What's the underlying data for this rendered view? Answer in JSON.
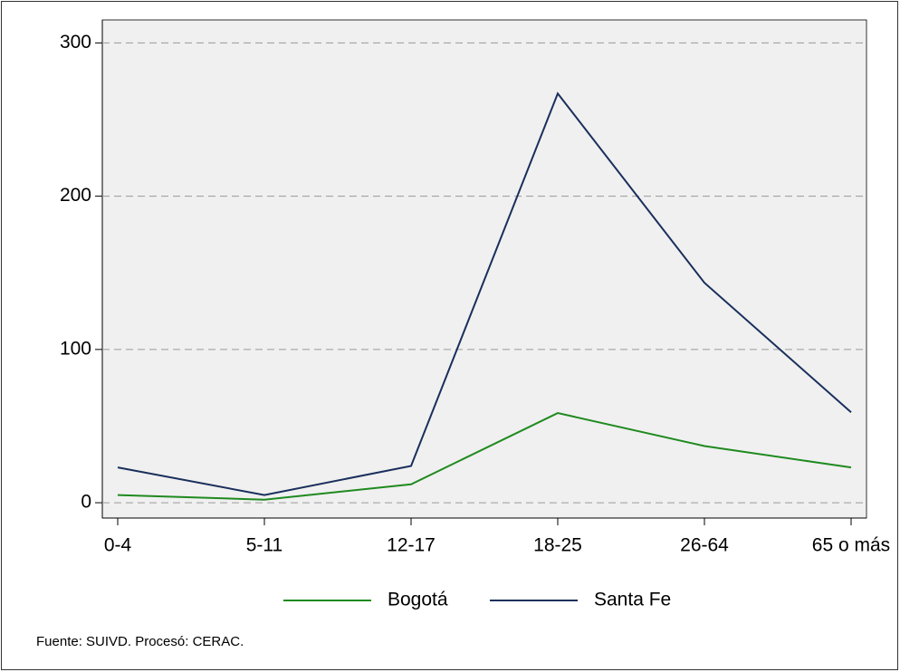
{
  "chart_data": {
    "type": "line",
    "categories": [
      "0-4",
      "5-11",
      "12-17",
      "18-25",
      "26-64",
      "65 o más"
    ],
    "series": [
      {
        "name": "Bogotá",
        "color": "#1f8a1f",
        "values": [
          5,
          2,
          12,
          58.5,
          37,
          23
        ]
      },
      {
        "name": "Santa Fe",
        "color": "#1a2f5c",
        "values": [
          23,
          5,
          24,
          267,
          143.5,
          59
        ]
      }
    ],
    "ylim": [
      -10,
      315
    ],
    "yticks": [
      0,
      100,
      200,
      300
    ],
    "grid": true,
    "legend": "bottom",
    "note": "Fuente: SUIVD. Procesó: CERAC."
  }
}
